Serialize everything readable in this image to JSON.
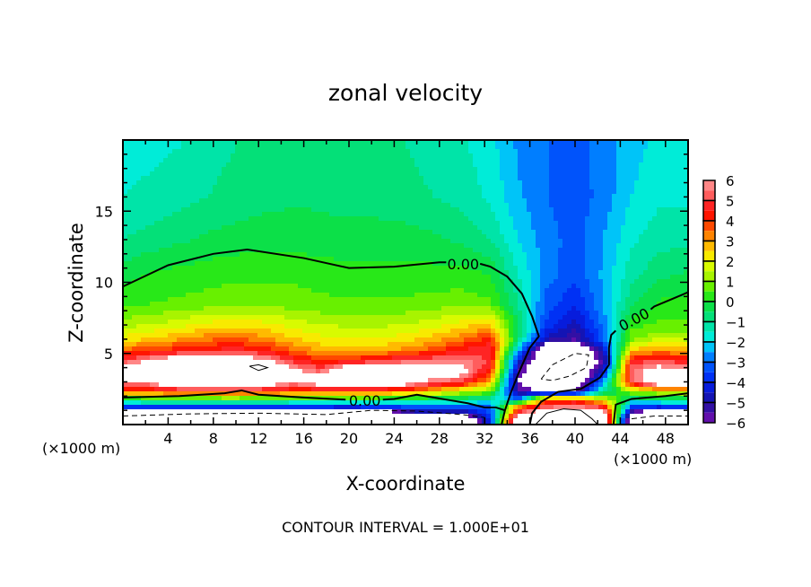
{
  "chart_data": {
    "type": "heatmap",
    "title": "zonal velocity",
    "xlabel": "X-coordinate",
    "ylabel": "Z-coordinate",
    "x_unit_left": "(×1000 m)",
    "x_unit_right": "(×1000 m)",
    "footer": "CONTOUR INTERVAL = 1.000E+01",
    "xlim": [
      0,
      50
    ],
    "ylim": [
      0,
      20
    ],
    "xticks": [
      "4",
      "8",
      "12",
      "16",
      "20",
      "24",
      "28",
      "32",
      "36",
      "40",
      "44",
      "48"
    ],
    "xtick_values": [
      4,
      8,
      12,
      16,
      20,
      24,
      28,
      32,
      36,
      40,
      44,
      48
    ],
    "yticks": [
      "5",
      "10",
      "15"
    ],
    "ytick_values": [
      5,
      10,
      15
    ],
    "colorbar": {
      "range": [
        -6,
        6
      ],
      "ticks": [
        "6",
        "5",
        "4",
        "3",
        "2",
        "1",
        "0",
        "−1",
        "−2",
        "−3",
        "−4",
        "−5",
        "−6"
      ],
      "tick_values": [
        6,
        5,
        4,
        3,
        2,
        1,
        0,
        -1,
        -2,
        -3,
        -4,
        -5,
        -6
      ],
      "out_of_range_color": "#ffffff"
    },
    "colormap": [
      [
        -6,
        "#7a10b0"
      ],
      [
        -5,
        "#1a10a0"
      ],
      [
        -4,
        "#0020f0"
      ],
      [
        -3,
        "#0064ff"
      ],
      [
        -2.5,
        "#0098ff"
      ],
      [
        -2,
        "#00f0f0"
      ],
      [
        -1,
        "#00e090"
      ],
      [
        0,
        "#10e030"
      ],
      [
        0.5,
        "#40f000"
      ],
      [
        1,
        "#90f000"
      ],
      [
        2,
        "#f0ff00"
      ],
      [
        2.5,
        "#ffd400"
      ],
      [
        3,
        "#ffa000"
      ],
      [
        3.5,
        "#ff6800"
      ],
      [
        4,
        "#ff2a00"
      ],
      [
        4.5,
        "#ff0000"
      ],
      [
        5,
        "#ff4848"
      ],
      [
        6,
        "#ff9a9a"
      ]
    ],
    "grid": {
      "x": [
        0,
        2.5,
        5,
        7.5,
        10,
        12.5,
        15,
        17.5,
        20,
        22.5,
        25,
        27.5,
        30,
        32.5,
        35,
        37.5,
        40,
        42.5,
        45,
        47.5,
        50
      ],
      "z": [
        0.3,
        0.8,
        1.3,
        1.8,
        2.3,
        3,
        3.7,
        4.4,
        5.2,
        6,
        7,
        8.5,
        10.5,
        13,
        16,
        19.5
      ],
      "values": [
        [
          -8,
          -8,
          -8,
          -8,
          -8,
          -8,
          -8,
          -8,
          -8,
          -8,
          -8,
          -8,
          -8,
          -4,
          8,
          8,
          8,
          8,
          -8,
          -8,
          -8
        ],
        [
          -8,
          -8,
          -8,
          -8,
          -8,
          -8,
          -8,
          -8,
          -8,
          -8,
          -6,
          -5,
          -5.5,
          -3.5,
          5,
          8,
          8,
          7,
          -6,
          -8,
          -8
        ],
        [
          -3.0,
          -3.0,
          -3.2,
          -3.0,
          -2.8,
          -3.0,
          -3.2,
          -3.3,
          -3.4,
          -3.3,
          -3.0,
          -2.8,
          -3.0,
          -3.0,
          3.0,
          5.0,
          5.5,
          4.5,
          -3.2,
          -3.4,
          -3.0
        ],
        [
          -0.2,
          0.2,
          0.4,
          0.5,
          0.6,
          0.4,
          0.2,
          0.1,
          0.1,
          0.1,
          0.0,
          -0.4,
          -0.6,
          -1.2,
          -3.0,
          3.5,
          3.5,
          1.5,
          -0.8,
          -0.6,
          -0.3
        ],
        [
          3.6,
          3.8,
          4.0,
          4.2,
          4.2,
          4.0,
          3.8,
          3.6,
          3.6,
          3.4,
          3.2,
          2.4,
          1.4,
          0.8,
          -5.5,
          -6,
          -5.8,
          -1,
          1.0,
          1.6,
          1.6
        ],
        [
          5.8,
          6.2,
          8,
          8,
          8,
          7.5,
          6.0,
          7.0,
          8,
          8,
          7.0,
          5.5,
          5.0,
          2.8,
          -6,
          -8,
          -8,
          -2.5,
          5.0,
          8,
          8
        ],
        [
          8,
          8,
          8,
          8,
          8,
          8,
          6.5,
          5.5,
          8,
          8,
          8,
          7,
          6.5,
          4.0,
          -5.5,
          -8,
          -8,
          -4.5,
          5.4,
          7.0,
          6.5
        ],
        [
          5.2,
          6.5,
          7.5,
          7.5,
          7.5,
          6.5,
          5.0,
          4.2,
          4.6,
          5.2,
          5.5,
          5.8,
          5.8,
          4.8,
          -4.5,
          -8,
          -8,
          -5.5,
          4.8,
          5.2,
          4.8
        ],
        [
          3.6,
          4.0,
          4.3,
          4.6,
          4.8,
          4.4,
          3.6,
          2.8,
          2.6,
          2.8,
          3.2,
          3.8,
          4.6,
          5.0,
          -2.5,
          -8,
          -8,
          -4.5,
          2.6,
          3.2,
          2.8
        ],
        [
          2.2,
          2.6,
          3.0,
          3.4,
          3.6,
          3.2,
          2.6,
          2.2,
          2.0,
          2.0,
          2.3,
          2.8,
          3.4,
          4.2,
          -0.8,
          -4.8,
          -5.5,
          -3.2,
          0.8,
          1.6,
          1.4
        ],
        [
          1.3,
          1.5,
          1.8,
          2.2,
          2.4,
          2.2,
          1.8,
          1.5,
          1.4,
          1.4,
          1.5,
          1.8,
          2.3,
          2.6,
          -0.5,
          -3.6,
          -4.8,
          -2.8,
          0.3,
          0.6,
          0.6
        ],
        [
          0.3,
          0.5,
          0.6,
          0.7,
          0.8,
          0.8,
          0.7,
          0.6,
          0.6,
          0.6,
          0.6,
          0.7,
          0.8,
          0.6,
          -1.0,
          -3.2,
          -4.0,
          -2.5,
          -0.6,
          0.1,
          0.2
        ],
        [
          -0.2,
          0.1,
          0.2,
          0.3,
          0.4,
          0.4,
          0.4,
          0.3,
          0.2,
          0.2,
          0.2,
          0.2,
          0.2,
          0.0,
          -1.5,
          -2.8,
          -3.3,
          -2.4,
          -1.2,
          -0.6,
          -0.4
        ],
        [
          -1.0,
          -0.8,
          -0.6,
          -0.4,
          -0.3,
          -0.2,
          -0.2,
          -0.3,
          -0.3,
          -0.3,
          -0.3,
          -0.4,
          -0.6,
          -1.0,
          -2.0,
          -2.8,
          -3.2,
          -2.5,
          -1.6,
          -1.2,
          -1.2
        ],
        [
          -1.5,
          -1.4,
          -1.2,
          -1.0,
          -0.8,
          -0.7,
          -0.6,
          -0.6,
          -0.7,
          -0.7,
          -0.8,
          -1.0,
          -1.2,
          -1.6,
          -2.4,
          -3.0,
          -3.3,
          -2.8,
          -2.0,
          -1.6,
          -1.6
        ],
        [
          -1.6,
          -1.6,
          -1.5,
          -1.2,
          -1.0,
          -0.9,
          -0.8,
          -0.8,
          -0.8,
          -0.9,
          -1.0,
          -1.2,
          -1.4,
          -1.8,
          -2.6,
          -3.0,
          -3.2,
          -2.8,
          -2.2,
          -1.8,
          -1.8
        ]
      ]
    },
    "contours": [
      {
        "level": 0,
        "style": "solid",
        "points": [
          [
            0,
            9.7
          ],
          [
            4,
            11.2
          ],
          [
            8,
            12
          ],
          [
            11,
            12.3
          ],
          [
            16,
            11.7
          ],
          [
            20,
            11
          ],
          [
            24,
            11.1
          ],
          [
            28,
            11.4
          ],
          [
            28.6,
            11.4
          ]
        ]
      },
      {
        "level": 0,
        "style": "solid",
        "points": [
          [
            31.6,
            11.3
          ],
          [
            32.5,
            11.1
          ],
          [
            34,
            10.4
          ],
          [
            35.3,
            9.2
          ],
          [
            36.2,
            7.6
          ],
          [
            36.8,
            6.2
          ],
          [
            36,
            5.4
          ],
          [
            35,
            3.6
          ],
          [
            34.3,
            2.2
          ],
          [
            33.8,
            1.0
          ],
          [
            33.5,
            0
          ]
        ]
      },
      {
        "level": 0,
        "style": "solid",
        "points": [
          [
            0,
            1.9
          ],
          [
            5,
            2.0
          ],
          [
            9,
            2.2
          ],
          [
            10.5,
            2.4
          ],
          [
            12,
            2.1
          ],
          [
            16,
            1.9
          ],
          [
            19.7,
            1.75
          ]
        ]
      },
      {
        "level": 0,
        "style": "solid",
        "points": [
          [
            23,
            1.75
          ],
          [
            24,
            1.8
          ],
          [
            26,
            2.1
          ],
          [
            27.5,
            1.9
          ],
          [
            29,
            1.7
          ],
          [
            30.5,
            1.5
          ],
          [
            32,
            1.2
          ],
          [
            33,
            1.2
          ],
          [
            33.8,
            1.0
          ]
        ]
      },
      {
        "level": 0,
        "style": "solid",
        "points": [
          [
            50,
            9.3
          ],
          [
            48.5,
            8.8
          ],
          [
            47,
            8.3
          ],
          [
            46.7,
            8.1
          ]
        ]
      },
      {
        "level": 0,
        "style": "solid",
        "points": [
          [
            43.6,
            6.6
          ],
          [
            43.2,
            6.3
          ],
          [
            43,
            5.4
          ],
          [
            43,
            4.2
          ],
          [
            42.2,
            3.3
          ],
          [
            40.5,
            2.5
          ],
          [
            38.5,
            2.3
          ],
          [
            37,
            1.6
          ],
          [
            36.2,
            0.8
          ],
          [
            36,
            0
          ]
        ]
      },
      {
        "level": 0,
        "style": "solid",
        "points": [
          [
            43.4,
            0
          ],
          [
            43.6,
            1.4
          ],
          [
            45,
            1.8
          ],
          [
            48,
            2.0
          ],
          [
            50,
            2.2
          ]
        ]
      },
      {
        "level": -10,
        "style": "dashed",
        "points": [
          [
            0,
            0.6
          ],
          [
            6,
            0.75
          ],
          [
            12,
            0.8
          ],
          [
            18,
            0.7
          ],
          [
            22,
            1.0
          ],
          [
            26,
            0.95
          ],
          [
            30,
            0.7
          ],
          [
            32,
            0.5
          ]
        ]
      },
      {
        "level": -10,
        "style": "dashed",
        "points": [
          [
            37,
            3.2
          ],
          [
            38,
            4.2
          ],
          [
            40,
            5
          ],
          [
            41.2,
            4.9
          ],
          [
            41,
            4
          ],
          [
            39.5,
            3.4
          ],
          [
            38,
            3.1
          ],
          [
            37,
            3.2
          ]
        ]
      },
      {
        "level": -10,
        "style": "dashed",
        "points": [
          [
            45,
            0.4
          ],
          [
            47,
            0.6
          ],
          [
            50,
            0.6
          ]
        ]
      },
      {
        "level": 10,
        "style": "solid",
        "points": [
          [
            36.5,
            0
          ],
          [
            37.5,
            0.8
          ],
          [
            39,
            1.1
          ],
          [
            40.5,
            1
          ],
          [
            41.5,
            0.4
          ],
          [
            42,
            0
          ]
        ]
      },
      {
        "level": 10,
        "style": "solid",
        "points": [
          [
            11.2,
            4.1
          ],
          [
            12,
            4.2
          ],
          [
            12.8,
            4.0
          ],
          [
            12,
            3.8
          ],
          [
            11.2,
            4.1
          ]
        ]
      }
    ],
    "contour_labels": [
      {
        "text": "0.00",
        "x": 30.1,
        "z": 11.3
      },
      {
        "text": "0.00",
        "x": 45.2,
        "z": 7.4
      },
      {
        "text": "0.00",
        "x": 21.4,
        "z": 1.7
      }
    ]
  }
}
